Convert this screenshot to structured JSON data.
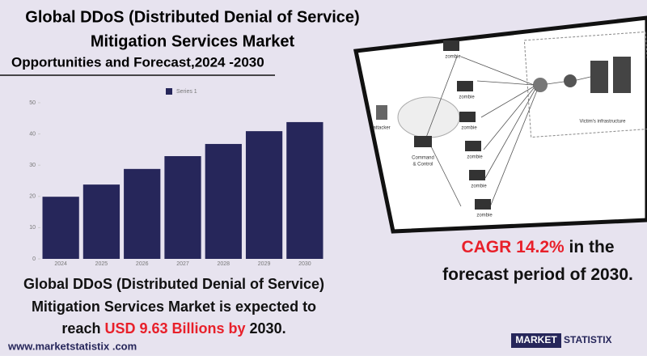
{
  "header": {
    "title_lines": [
      "Global DDoS (Distributed Denial of Service)",
      "Mitigation Services Market"
    ],
    "subtitle": "Opportunities and Forecast,2024 -2030"
  },
  "chart_data": {
    "type": "bar",
    "categories": [
      "2024",
      "2025",
      "2026",
      "2027",
      "2028",
      "2029",
      "2030"
    ],
    "series": [
      {
        "name": "Series 1",
        "color": "#26265a",
        "values": [
          19.9,
          23.8,
          28.8,
          32.9,
          36.8,
          40.9,
          43.8
        ]
      }
    ],
    "ylim": [
      0,
      50
    ],
    "yticks": [
      0,
      10,
      20,
      30,
      40,
      50
    ],
    "grid": false,
    "legend": "top"
  },
  "diagram": {
    "attacker": "attacker",
    "command": [
      "Command",
      "& Control"
    ],
    "zombies": [
      "zombie",
      "zombie",
      "zombie",
      "zombie",
      "zombie",
      "zombie"
    ],
    "victim": "Victim's infrastructure"
  },
  "cagr": {
    "lines": [
      [
        {
          "text": "CAGR  14.2%",
          "highlight": true
        },
        {
          "text": " in the",
          "highlight": false
        }
      ],
      [
        {
          "text": "forecast period of 2030.",
          "highlight": false
        }
      ]
    ]
  },
  "summary": {
    "lines": [
      [
        {
          "text": "Global DDoS (Distributed Denial of Service)",
          "highlight": false
        }
      ],
      [
        {
          "text": "Mitigation Services Market  is expected to",
          "highlight": false
        }
      ],
      [
        {
          "text": "reach ",
          "highlight": false
        },
        {
          "text": "USD 9.63 Billions by",
          "highlight": true
        },
        {
          "text": " 2030.",
          "highlight": false
        }
      ]
    ]
  },
  "footer": {
    "url": "www.marketstatistix .com",
    "logo": [
      "MARKET",
      "STATISTIX"
    ]
  }
}
